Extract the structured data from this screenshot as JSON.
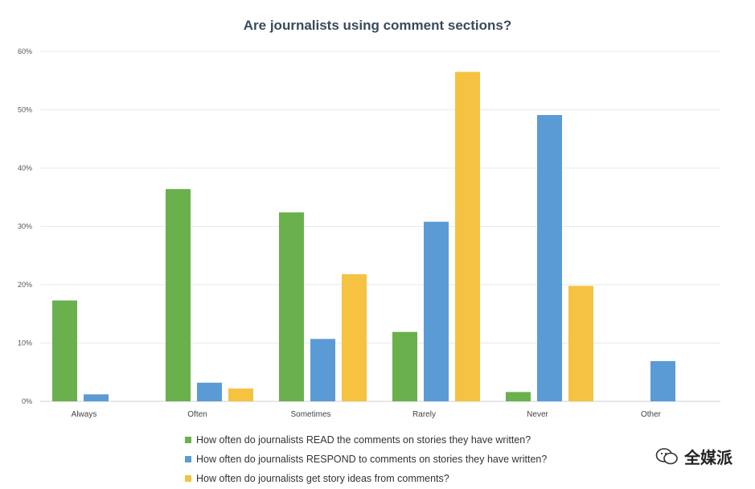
{
  "chart_data": {
    "type": "bar",
    "title": "Are journalists using comment sections?",
    "categories": [
      "Always",
      "Often",
      "Sometimes",
      "Rarely",
      "Never",
      "Other"
    ],
    "series": [
      {
        "name": "How often do journalists READ the comments on stories they have written?",
        "color": "#6ab04c",
        "values": [
          17.3,
          36.4,
          32.4,
          11.9,
          1.6,
          0
        ]
      },
      {
        "name": "How often do journalists RESPOND to comments on stories they have written?",
        "color": "#5b9bd5",
        "values": [
          1.2,
          3.2,
          10.7,
          30.8,
          49.1,
          6.9
        ]
      },
      {
        "name": "How often do journalists get story ideas from comments?",
        "color": "#f5c242",
        "values": [
          0,
          2.2,
          21.8,
          56.5,
          19.8,
          0
        ]
      }
    ],
    "ylim": [
      0,
      60
    ],
    "yticks": [
      "0%",
      "10%",
      "20%",
      "30%",
      "40%",
      "50%",
      "60%"
    ],
    "grid": true,
    "legend_position": "bottom"
  },
  "watermark": {
    "text": "全媒派",
    "icon": "wechat-icon"
  }
}
